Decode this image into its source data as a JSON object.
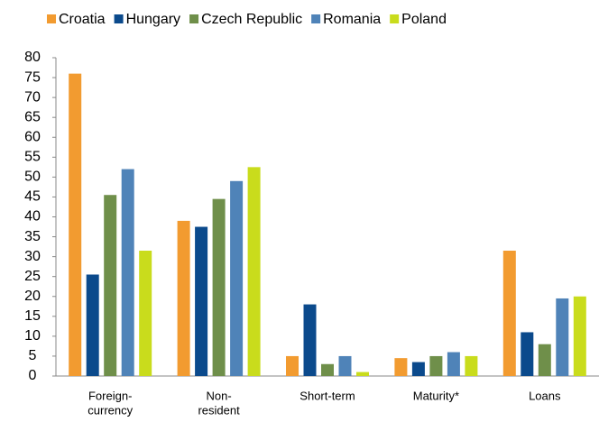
{
  "chart_data": {
    "type": "grouped_bar",
    "categories": [
      [
        "Foreign-",
        "currency"
      ],
      [
        "Non-",
        "resident"
      ],
      [
        "Short-term"
      ],
      [
        "Maturity*"
      ],
      [
        "Loans"
      ]
    ],
    "series": [
      {
        "name": "Croatia",
        "color": "#f29b30",
        "values": [
          76,
          39,
          5,
          4.5,
          31.5
        ]
      },
      {
        "name": "Hungary",
        "color": "#0b4a8c",
        "values": [
          25.5,
          37.5,
          18,
          3.5,
          11
        ]
      },
      {
        "name": "Czech Republic",
        "color": "#6f8f4a",
        "values": [
          45.5,
          44.5,
          3,
          5,
          8
        ]
      },
      {
        "name": "Romania",
        "color": "#4f83b8",
        "values": [
          52,
          49,
          5,
          6,
          19.5
        ]
      },
      {
        "name": "Poland",
        "color": "#c9dc1c",
        "values": [
          31.5,
          52.5,
          1,
          5,
          20
        ]
      }
    ],
    "ylim": [
      0,
      80
    ],
    "yticks": [
      0,
      5,
      10,
      15,
      20,
      25,
      30,
      35,
      40,
      45,
      50,
      55,
      60,
      65,
      70,
      75,
      80
    ],
    "grid": false,
    "legend": "top"
  }
}
